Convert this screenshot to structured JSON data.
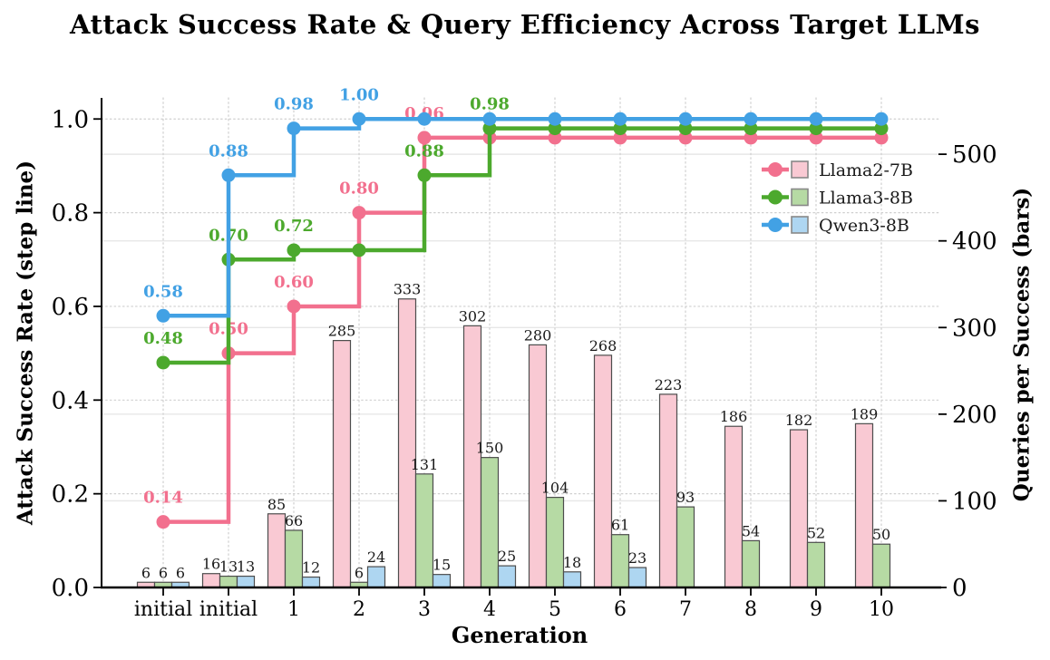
{
  "title": "Attack Success Rate & Query Efficiency Across Target LLMs",
  "chart_data": {
    "type": "combo (step line + grouped bar)",
    "x_label": "Generation",
    "y_left_label": "Attack Success Rate (step line)",
    "y_right_label": "Queries per Success (bars)",
    "categories": [
      "initial",
      "initial",
      "1",
      "2",
      "3",
      "4",
      "5",
      "6",
      "7",
      "8",
      "9",
      "10"
    ],
    "y_left_tick_values": [
      0.0,
      0.2,
      0.4,
      0.6,
      0.8,
      1.0
    ],
    "y_left_tick_labels": [
      "0.0",
      "0.2",
      "0.4",
      "0.6",
      "0.8",
      "1.0"
    ],
    "y_left_range": [
      0.0,
      1.045
    ],
    "y_right_tick_values": [
      0,
      100,
      200,
      300,
      400,
      500
    ],
    "y_right_tick_labels": [
      "0",
      "100",
      "200",
      "300",
      "400",
      "500"
    ],
    "y_right_range": [
      0,
      565
    ],
    "grid": "horizontal dotted (left ticks), horizontal solid light (right ticks), vertical dotted (categories)",
    "legend_position": "upper right inside plot",
    "line_style": "steps-post with circle markers",
    "series": [
      {
        "name": "Llama2-7B",
        "line_color": "#f2708e",
        "bar_fill": "#f9c9d3",
        "asr": [
          0.14,
          0.5,
          0.6,
          0.8,
          0.96,
          0.96,
          0.96,
          0.96,
          0.96,
          0.96,
          0.96,
          0.96
        ],
        "asr_labels": [
          "0.14",
          "0.50",
          "0.60",
          "0.80",
          "0.96",
          null,
          null,
          null,
          null,
          null,
          null,
          null
        ],
        "queries": [
          6,
          16,
          85,
          285,
          333,
          302,
          280,
          268,
          223,
          186,
          182,
          189
        ]
      },
      {
        "name": "Llama3-8B",
        "line_color": "#4ca92d",
        "bar_fill": "#b6daa4",
        "asr": [
          0.48,
          0.7,
          0.72,
          0.72,
          0.88,
          0.98,
          0.98,
          0.98,
          0.98,
          0.98,
          0.98,
          0.98
        ],
        "asr_labels": [
          "0.48",
          "0.70",
          "0.72",
          null,
          "0.88",
          "0.98",
          null,
          null,
          null,
          null,
          null,
          null
        ],
        "queries": [
          6,
          13,
          66,
          6,
          131,
          150,
          104,
          61,
          93,
          54,
          52,
          50
        ]
      },
      {
        "name": "Qwen3-8B",
        "line_color": "#42a1e4",
        "bar_fill": "#aed6f1",
        "asr": [
          0.58,
          0.88,
          0.98,
          1.0,
          1.0,
          1.0,
          1.0,
          1.0,
          1.0,
          1.0,
          1.0,
          1.0
        ],
        "asr_labels": [
          "0.58",
          "0.88",
          "0.98",
          "1.00",
          null,
          null,
          null,
          null,
          null,
          null,
          null,
          null
        ],
        "queries": [
          6,
          13,
          12,
          24,
          15,
          25,
          18,
          23,
          null,
          null,
          null,
          null
        ]
      }
    ],
    "colors": {
      "bar_edge": "#4d4d4d",
      "grid_dotted": "#cfcfcf",
      "grid_solid": "#e7e7e7",
      "axis": "#000000",
      "tick_label": "#000000",
      "bar_value_label": "#1a1a1a",
      "legend_text": "#1a1a1a",
      "legend_swatch_edge": "#888888"
    }
  }
}
